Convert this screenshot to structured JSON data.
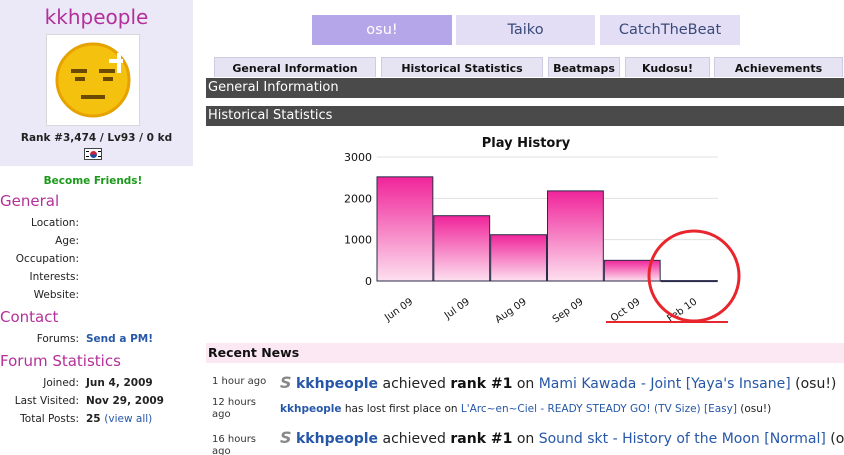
{
  "profile": {
    "username": "kkhpeople",
    "rank_line": "Rank #3,474 / Lv93 / 0 kd",
    "become_friends": "Become Friends!"
  },
  "general": {
    "title": "General",
    "fields": [
      {
        "label": "Location:",
        "value": ""
      },
      {
        "label": "Age:",
        "value": ""
      },
      {
        "label": "Occupation:",
        "value": ""
      },
      {
        "label": "Interests:",
        "value": ""
      },
      {
        "label": "Website:",
        "value": ""
      }
    ]
  },
  "contact": {
    "title": "Contact",
    "forums_label": "Forums:",
    "forums_link": "Send a PM!"
  },
  "forum_stats": {
    "title": "Forum Statistics",
    "joined_label": "Joined:",
    "joined_value": "Jun 4, 2009",
    "last_visited_label": "Last Visited:",
    "last_visited_value": "Nov 29, 2009",
    "total_posts_label": "Total Posts:",
    "total_posts_value": "25",
    "view_all": "(view all)"
  },
  "mode_tabs": [
    "osu!",
    "Taiko",
    "CatchTheBeat"
  ],
  "sub_tabs": [
    "General Information",
    "Historical Statistics",
    "Beatmaps",
    "Kudosu!",
    "Achievements"
  ],
  "section_headers": {
    "general_info": "General Information",
    "historical": "Historical Statistics",
    "recent_news": "Recent News"
  },
  "chart_data": {
    "type": "bar",
    "title": "Play History",
    "categories": [
      "Jun 09",
      "Jul 09",
      "Aug 09",
      "Sep 09",
      "Oct 09",
      "Feb 10"
    ],
    "values": [
      2520,
      1580,
      1120,
      2180,
      500,
      10
    ],
    "ylim": [
      0,
      3000
    ],
    "yticks": [
      "0",
      "1000",
      "2000",
      "3000"
    ],
    "grid": true,
    "bar_color_top": "#f0249a",
    "bar_color_bottom": "#fde0ef"
  },
  "news": [
    {
      "time": "1 hour ago",
      "user": "kkhpeople",
      "pre": "achieved",
      "rank": "rank #1",
      "on": "on",
      "map": "Mami Kawada - Joint [Yaya's Insane]",
      "mode": "(osu!)"
    },
    {
      "time": "12 hours ago",
      "user": "kkhpeople",
      "text": "has lost first place on",
      "map": "L'Arc~en~Ciel - READY STEADY GO! (TV Size) [Easy]",
      "mode": "(osu!)"
    },
    {
      "time": "16 hours ago",
      "user": "kkhpeople",
      "pre": "achieved",
      "rank": "rank #1",
      "on": "on",
      "map": "Sound skt - History of the Moon [Normal]",
      "mode": "(osu!)"
    }
  ]
}
